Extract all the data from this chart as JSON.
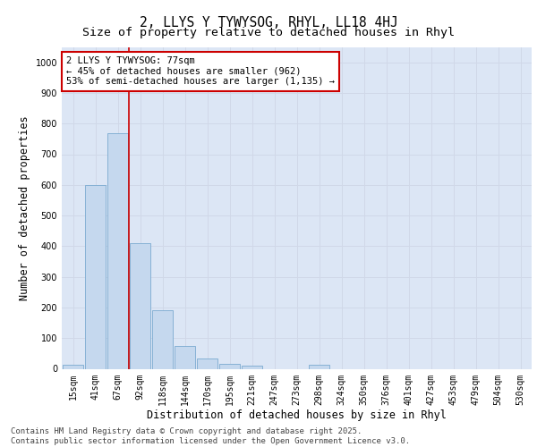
{
  "title_line1": "2, LLYS Y TYWYSOG, RHYL, LL18 4HJ",
  "title_line2": "Size of property relative to detached houses in Rhyl",
  "xlabel": "Distribution of detached houses by size in Rhyl",
  "ylabel": "Number of detached properties",
  "categories": [
    "15sqm",
    "41sqm",
    "67sqm",
    "92sqm",
    "118sqm",
    "144sqm",
    "170sqm",
    "195sqm",
    "221sqm",
    "247sqm",
    "273sqm",
    "298sqm",
    "324sqm",
    "350sqm",
    "376sqm",
    "401sqm",
    "427sqm",
    "453sqm",
    "479sqm",
    "504sqm",
    "530sqm"
  ],
  "values": [
    12,
    600,
    770,
    410,
    190,
    75,
    35,
    15,
    10,
    0,
    0,
    13,
    0,
    0,
    0,
    0,
    0,
    0,
    0,
    0,
    0
  ],
  "bar_color": "#c5d8ee",
  "bar_edge_color": "#7aaad0",
  "grid_color": "#d0d8e8",
  "background_color": "#dce6f5",
  "fig_background_color": "#ffffff",
  "vline_x_index": 2.5,
  "vline_color": "#cc0000",
  "annotation_text": "2 LLYS Y TYWYSOG: 77sqm\n← 45% of detached houses are smaller (962)\n53% of semi-detached houses are larger (1,135) →",
  "annotation_box_color": "#ffffff",
  "annotation_box_edge_color": "#cc0000",
  "ylim": [
    0,
    1050
  ],
  "yticks": [
    0,
    100,
    200,
    300,
    400,
    500,
    600,
    700,
    800,
    900,
    1000
  ],
  "footer_text": "Contains HM Land Registry data © Crown copyright and database right 2025.\nContains public sector information licensed under the Open Government Licence v3.0.",
  "title_fontsize": 10.5,
  "subtitle_fontsize": 9.5,
  "axis_label_fontsize": 8.5,
  "tick_fontsize": 7,
  "annotation_fontsize": 7.5,
  "footer_fontsize": 6.5
}
